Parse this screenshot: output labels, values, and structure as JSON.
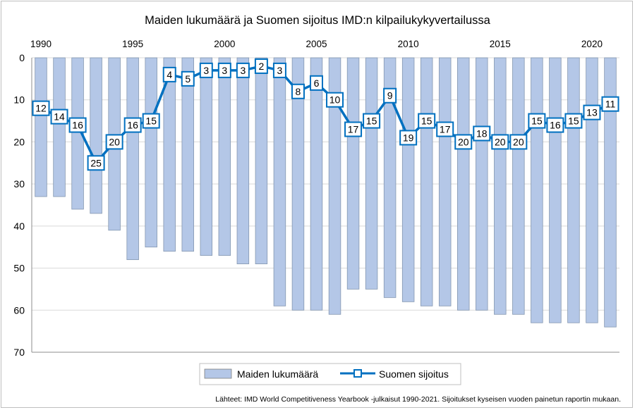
{
  "chart_data": {
    "type": "bar+line",
    "title": "Maiden lukumäärä ja Suomen sijoitus IMD:n kilpailukykyvertailussa",
    "x": [
      1990,
      1991,
      1992,
      1993,
      1994,
      1995,
      1996,
      1997,
      1998,
      1999,
      2000,
      2001,
      2002,
      2003,
      2004,
      2005,
      2006,
      2007,
      2008,
      2009,
      2010,
      2011,
      2012,
      2013,
      2014,
      2015,
      2016,
      2017,
      2018,
      2019,
      2020,
      2021
    ],
    "x_tick_labels": [
      "1990",
      "1995",
      "2000",
      "2005",
      "2010",
      "2015",
      "2020"
    ],
    "y_tick_labels": [
      "0",
      "10",
      "20",
      "30",
      "40",
      "50",
      "60",
      "70"
    ],
    "ylim": [
      0,
      70
    ],
    "y_inverted": true,
    "grid": true,
    "series": [
      {
        "name": "Maiden lukumäärä",
        "type": "bar",
        "color": "#b4c7e7",
        "values": [
          33,
          33,
          36,
          37,
          41,
          48,
          45,
          46,
          46,
          47,
          47,
          49,
          49,
          59,
          60,
          60,
          61,
          55,
          55,
          57,
          58,
          59,
          59,
          60,
          60,
          61,
          61,
          63,
          63,
          63,
          63,
          64
        ]
      },
      {
        "name": "Suomen sijoitus",
        "type": "line",
        "color": "#0070c0",
        "values": [
          12,
          14,
          16,
          25,
          20,
          16,
          15,
          4,
          5,
          3,
          3,
          3,
          2,
          3,
          8,
          6,
          10,
          17,
          15,
          9,
          19,
          15,
          17,
          20,
          18,
          20,
          20,
          15,
          16,
          15,
          13,
          11
        ]
      }
    ],
    "legend_position": "bottom",
    "source_note": "Lähteet: IMD World Competitiveness Yearbook -julkaisut 1990-2021. Sijoitukset kyseisen vuoden painetun raportin mukaan."
  }
}
